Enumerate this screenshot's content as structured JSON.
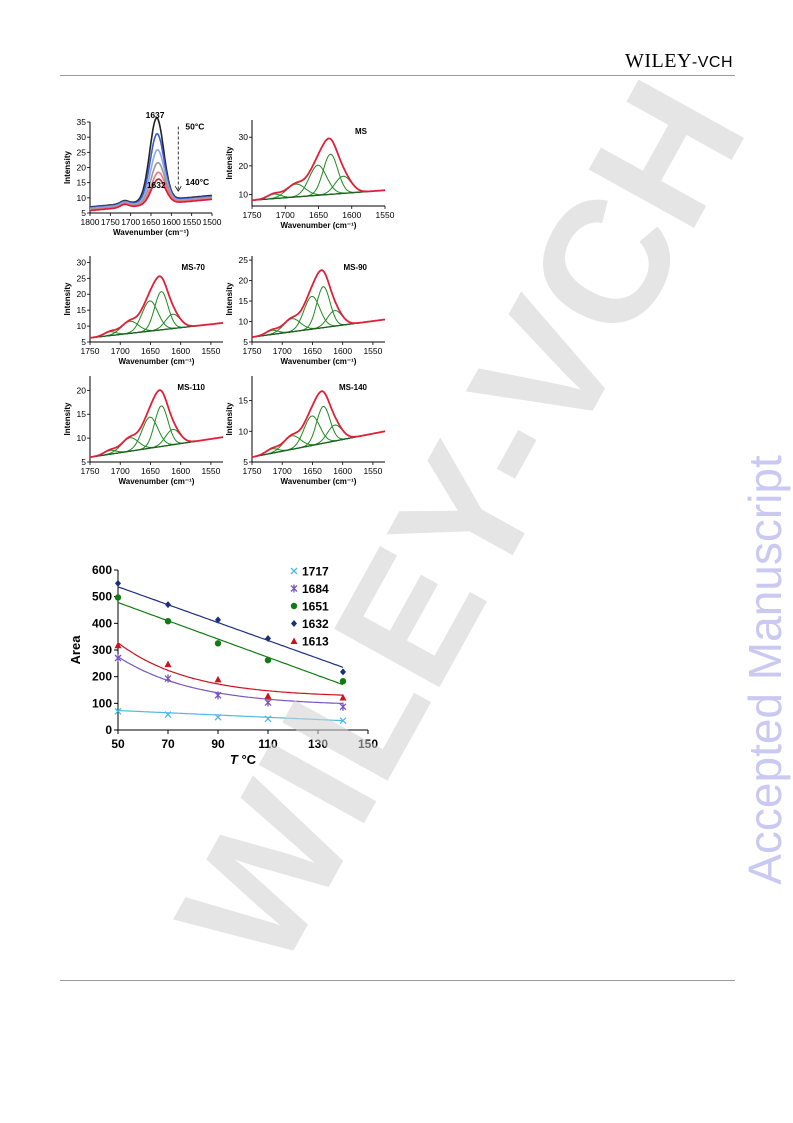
{
  "header": {
    "brand_main": "WILEY",
    "brand_sep": "-",
    "brand_sub": "VCH"
  },
  "watermarks": {
    "diagonal": "WILEY-VCH",
    "side": "Accepted Manuscript"
  },
  "colors": {
    "cooling_series": [
      "#222222",
      "#3a5bd0",
      "#8ea8e8",
      "#9a9a9a",
      "#ee7777",
      "#d81b3a"
    ],
    "fit_red": "#e0203a",
    "fit_green": "#1f8a1f",
    "baseline": "#1f5f1f"
  },
  "chart_data": [
    {
      "type": "line",
      "panel": "temperature-series",
      "xlabel": "Wavenumber (cm⁻¹)",
      "ylabel": "Intensity",
      "xlim": [
        1800,
        1500
      ],
      "ylim": [
        5,
        35
      ],
      "x_reversed": true,
      "xticks": [
        1800,
        1750,
        1700,
        1650,
        1600,
        1550,
        1500
      ],
      "yticks": [
        5,
        10,
        15,
        20,
        25,
        30,
        35
      ],
      "annotations": {
        "peak_top": "1637",
        "peak_bottom": "1632",
        "temp_high": "50°C",
        "temp_low": "140°C"
      },
      "series": [
        {
          "peak": 35.5,
          "center": 1636,
          "base_left": 7.0,
          "base_right": 10.8
        },
        {
          "peak": 30.5,
          "center": 1635,
          "base_left": 6.8,
          "base_right": 10.5
        },
        {
          "peak": 25.5,
          "center": 1634,
          "base_left": 6.5,
          "base_right": 10.2
        },
        {
          "peak": 21.5,
          "center": 1633,
          "base_left": 6.2,
          "base_right": 10.0
        },
        {
          "peak": 18.5,
          "center": 1632,
          "base_left": 6.0,
          "base_right": 9.8
        },
        {
          "peak": 16.5,
          "center": 1632,
          "base_left": 5.8,
          "base_right": 9.5
        }
      ]
    },
    {
      "type": "area",
      "title": "MS",
      "xlabel": "Wavenumber (cm⁻¹)",
      "ylabel": "Intensity",
      "xlim": [
        1750,
        1550
      ],
      "ylim": [
        6,
        36
      ],
      "xticks": [
        1750,
        1700,
        1650,
        1600,
        1550
      ],
      "yticks": [
        10,
        20,
        30
      ],
      "baseline": [
        8.0,
        11.5
      ],
      "components": [
        {
          "center": 1717,
          "height": 1.6,
          "width": 10
        },
        {
          "center": 1684,
          "height": 4.5,
          "width": 14
        },
        {
          "center": 1651,
          "height": 10.5,
          "width": 13
        },
        {
          "center": 1632,
          "height": 14.0,
          "width": 11
        },
        {
          "center": 1613,
          "height": 6.0,
          "width": 12
        }
      ]
    },
    {
      "type": "area",
      "title": "MS-70",
      "xlabel": "Wavenumber (cm⁻¹)",
      "ylabel": "Intensity",
      "xlim": [
        1750,
        1530
      ],
      "ylim": [
        5,
        32
      ],
      "xticks": [
        1750,
        1700,
        1650,
        1600,
        1550
      ],
      "yticks": [
        5,
        10,
        15,
        20,
        25,
        30
      ],
      "baseline": [
        6.3,
        11.0
      ],
      "components": [
        {
          "center": 1717,
          "height": 1.2,
          "width": 10
        },
        {
          "center": 1684,
          "height": 3.8,
          "width": 14
        },
        {
          "center": 1651,
          "height": 9.5,
          "width": 13
        },
        {
          "center": 1632,
          "height": 12.0,
          "width": 11
        },
        {
          "center": 1613,
          "height": 4.5,
          "width": 12
        }
      ]
    },
    {
      "type": "area",
      "title": "MS-90",
      "xlabel": "Wavenumber (cm⁻¹)",
      "ylabel": "Intensity",
      "xlim": [
        1750,
        1530
      ],
      "ylim": [
        5,
        26
      ],
      "xticks": [
        1750,
        1700,
        1650,
        1600,
        1550
      ],
      "yticks": [
        5,
        10,
        15,
        20,
        25
      ],
      "baseline": [
        6.2,
        10.5
      ],
      "components": [
        {
          "center": 1717,
          "height": 1.0,
          "width": 10
        },
        {
          "center": 1684,
          "height": 3.2,
          "width": 14
        },
        {
          "center": 1651,
          "height": 8.0,
          "width": 13
        },
        {
          "center": 1632,
          "height": 10.0,
          "width": 11
        },
        {
          "center": 1613,
          "height": 3.8,
          "width": 12
        }
      ]
    },
    {
      "type": "area",
      "title": "MS-110",
      "xlabel": "Wavenumber (cm⁻¹)",
      "ylabel": "Intensity",
      "xlim": [
        1750,
        1530
      ],
      "ylim": [
        5,
        23
      ],
      "xticks": [
        1750,
        1700,
        1650,
        1600,
        1550
      ],
      "yticks": [
        5,
        10,
        15,
        20
      ],
      "baseline": [
        6.0,
        10.2
      ],
      "components": [
        {
          "center": 1717,
          "height": 0.8,
          "width": 10
        },
        {
          "center": 1684,
          "height": 2.8,
          "width": 14
        },
        {
          "center": 1651,
          "height": 6.5,
          "width": 13
        },
        {
          "center": 1632,
          "height": 8.5,
          "width": 11
        },
        {
          "center": 1613,
          "height": 3.2,
          "width": 12
        }
      ]
    },
    {
      "type": "area",
      "title": "MS-140",
      "xlabel": "Wavenumber (cm⁻¹)",
      "ylabel": "Intensity",
      "xlim": [
        1750,
        1530
      ],
      "ylim": [
        5,
        19
      ],
      "xticks": [
        1750,
        1700,
        1650,
        1600,
        1550
      ],
      "yticks": [
        5,
        10,
        15
      ],
      "baseline": [
        5.8,
        10.0
      ],
      "components": [
        {
          "center": 1717,
          "height": 0.7,
          "width": 10
        },
        {
          "center": 1684,
          "height": 2.2,
          "width": 14
        },
        {
          "center": 1651,
          "height": 4.8,
          "width": 13
        },
        {
          "center": 1632,
          "height": 6.0,
          "width": 11
        },
        {
          "center": 1613,
          "height": 2.6,
          "width": 12
        }
      ]
    },
    {
      "type": "scatter",
      "panel": "area-vs-temperature",
      "xlabel": "T",
      "xlabel_unit": "°C",
      "ylabel": "Area",
      "xlim": [
        50,
        150
      ],
      "ylim": [
        0,
        600
      ],
      "xticks": [
        50,
        70,
        90,
        110,
        130,
        150
      ],
      "yticks": [
        0,
        100,
        200,
        300,
        400,
        500,
        600
      ],
      "legend": "top-right",
      "series": [
        {
          "name": "1717",
          "color": "#4fb8e8",
          "marker": "x",
          "x": [
            50,
            70,
            90,
            110,
            140
          ],
          "y": [
            70,
            58,
            48,
            42,
            35
          ],
          "fit_linear": [
            73,
            35
          ]
        },
        {
          "name": "1684",
          "color": "#7a55c0",
          "marker": "star",
          "x": [
            50,
            70,
            90,
            110,
            140
          ],
          "y": [
            270,
            193,
            130,
            103,
            87
          ],
          "fit_decay": {
            "a": 90,
            "b": 185,
            "k": 0.033
          }
        },
        {
          "name": "1651",
          "color": "#117a11",
          "marker": "circle",
          "x": [
            50,
            70,
            90,
            110,
            140
          ],
          "y": [
            497,
            408,
            325,
            262,
            183
          ],
          "fit_linear": [
            478,
            170
          ]
        },
        {
          "name": "1632",
          "color": "#1a2f7e",
          "marker": "diamond",
          "x": [
            50,
            70,
            90,
            110,
            140
          ],
          "y": [
            550,
            470,
            413,
            343,
            218
          ],
          "fit_linear": [
            537,
            235
          ]
        },
        {
          "name": "1613",
          "color": "#cc1122",
          "marker": "triangle",
          "x": [
            50,
            70,
            90,
            110,
            140
          ],
          "y": [
            318,
            247,
            190,
            128,
            122
          ],
          "fit_decay": {
            "a": 122,
            "b": 205,
            "k": 0.035
          }
        }
      ]
    }
  ]
}
